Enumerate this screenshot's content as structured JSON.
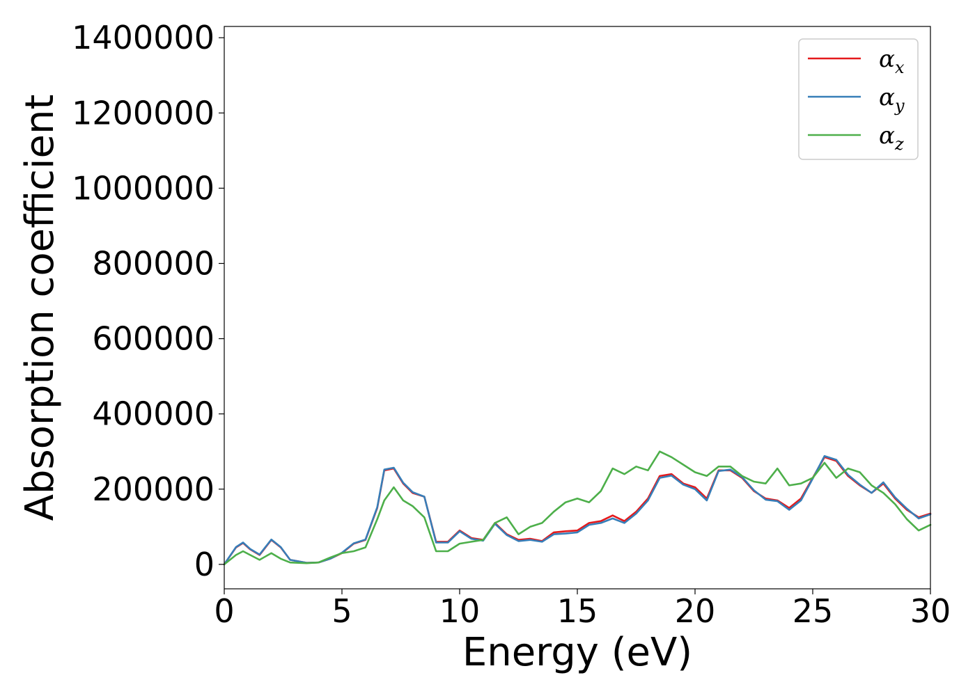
{
  "chart_data": {
    "type": "line",
    "title": "",
    "xlabel": "Energy (eV)",
    "ylabel": "Absorption coefficient",
    "xlim": [
      0,
      30
    ],
    "ylim": [
      -65000,
      1430000
    ],
    "xticks": [
      0,
      5,
      10,
      15,
      20,
      25,
      30
    ],
    "yticks": [
      0,
      200000,
      400000,
      600000,
      800000,
      1000000,
      1200000,
      1400000
    ],
    "grid": false,
    "legend_position": "top-right",
    "series": [
      {
        "name": "α",
        "subscript": "x",
        "color": "#e41a1c",
        "x": [
          0,
          0.5,
          0.8,
          1.1,
          1.5,
          2.0,
          2.4,
          2.8,
          3.5,
          4.0,
          4.5,
          5.0,
          5.5,
          6.0,
          6.5,
          6.8,
          7.2,
          7.6,
          8.0,
          8.5,
          9.0,
          9.5,
          10.0,
          10.5,
          11.0,
          11.5,
          12.0,
          12.5,
          13.0,
          13.5,
          14.0,
          14.5,
          15.0,
          15.5,
          16.0,
          16.5,
          17.0,
          17.5,
          18.0,
          18.5,
          19.0,
          19.5,
          20.0,
          20.5,
          21.0,
          21.5,
          22.0,
          22.5,
          23.0,
          23.5,
          24.0,
          24.5,
          25.0,
          25.5,
          26.0,
          26.5,
          27.0,
          27.5,
          28.0,
          28.5,
          29.0,
          29.5,
          30.0
        ],
        "y": [
          0,
          45000,
          57000,
          40000,
          25000,
          65000,
          45000,
          12000,
          4000,
          5000,
          15000,
          30000,
          55000,
          65000,
          150000,
          250000,
          255000,
          215000,
          190000,
          180000,
          60000,
          60000,
          90000,
          70000,
          65000,
          110000,
          80000,
          65000,
          68000,
          62000,
          85000,
          88000,
          90000,
          110000,
          115000,
          130000,
          115000,
          140000,
          175000,
          235000,
          240000,
          215000,
          205000,
          175000,
          250000,
          250000,
          230000,
          195000,
          175000,
          170000,
          150000,
          175000,
          230000,
          285000,
          275000,
          235000,
          210000,
          190000,
          215000,
          175000,
          145000,
          125000,
          135000
        ]
      },
      {
        "name": "α",
        "subscript": "y",
        "color": "#377eb8",
        "x": [
          0,
          0.5,
          0.8,
          1.1,
          1.5,
          2.0,
          2.4,
          2.8,
          3.5,
          4.0,
          4.5,
          5.0,
          5.5,
          6.0,
          6.5,
          6.8,
          7.2,
          7.6,
          8.0,
          8.5,
          9.0,
          9.5,
          10.0,
          10.5,
          11.0,
          11.5,
          12.0,
          12.5,
          13.0,
          13.5,
          14.0,
          14.5,
          15.0,
          15.5,
          16.0,
          16.5,
          17.0,
          17.5,
          18.0,
          18.5,
          19.0,
          19.5,
          20.0,
          20.5,
          21.0,
          21.5,
          22.0,
          22.5,
          23.0,
          23.5,
          24.0,
          24.5,
          25.0,
          25.5,
          26.0,
          26.5,
          27.0,
          27.5,
          28.0,
          28.5,
          29.0,
          29.5,
          30.0
        ],
        "y": [
          0,
          46000,
          58000,
          41000,
          26000,
          66000,
          46000,
          12000,
          4000,
          5000,
          15000,
          31000,
          56000,
          66000,
          152000,
          252000,
          257000,
          217000,
          192000,
          180000,
          58000,
          58000,
          88000,
          68000,
          63000,
          108000,
          78000,
          62000,
          65000,
          60000,
          80000,
          82000,
          85000,
          105000,
          110000,
          122000,
          110000,
          135000,
          170000,
          230000,
          236000,
          212000,
          200000,
          170000,
          248000,
          252000,
          232000,
          197000,
          172000,
          168000,
          145000,
          170000,
          228000,
          288000,
          278000,
          238000,
          212000,
          190000,
          218000,
          178000,
          148000,
          122000,
          133000
        ]
      },
      {
        "name": "α",
        "subscript": "z",
        "color": "#4daf4a",
        "x": [
          0,
          0.5,
          0.8,
          1.1,
          1.5,
          2.0,
          2.4,
          2.8,
          3.5,
          4.0,
          4.5,
          5.0,
          5.5,
          6.0,
          6.5,
          6.8,
          7.2,
          7.6,
          8.0,
          8.5,
          9.0,
          9.5,
          10.0,
          10.5,
          11.0,
          11.5,
          12.0,
          12.5,
          13.0,
          13.5,
          14.0,
          14.5,
          15.0,
          15.5,
          16.0,
          16.5,
          17.0,
          17.5,
          18.0,
          18.5,
          19.0,
          19.5,
          20.0,
          20.5,
          21.0,
          21.5,
          22.0,
          22.5,
          23.0,
          23.5,
          24.0,
          24.5,
          25.0,
          25.5,
          26.0,
          26.5,
          27.0,
          27.5,
          28.0,
          28.5,
          29.0,
          29.5,
          30.0
        ],
        "y": [
          0,
          25000,
          35000,
          25000,
          12000,
          30000,
          15000,
          5000,
          3000,
          5000,
          18000,
          30000,
          35000,
          45000,
          120000,
          170000,
          205000,
          170000,
          155000,
          125000,
          35000,
          35000,
          55000,
          60000,
          65000,
          110000,
          125000,
          80000,
          100000,
          110000,
          140000,
          165000,
          175000,
          165000,
          195000,
          255000,
          240000,
          260000,
          250000,
          300000,
          285000,
          265000,
          245000,
          235000,
          260000,
          260000,
          235000,
          220000,
          215000,
          255000,
          210000,
          215000,
          230000,
          270000,
          230000,
          255000,
          245000,
          210000,
          190000,
          160000,
          120000,
          90000,
          105000
        ]
      }
    ]
  }
}
